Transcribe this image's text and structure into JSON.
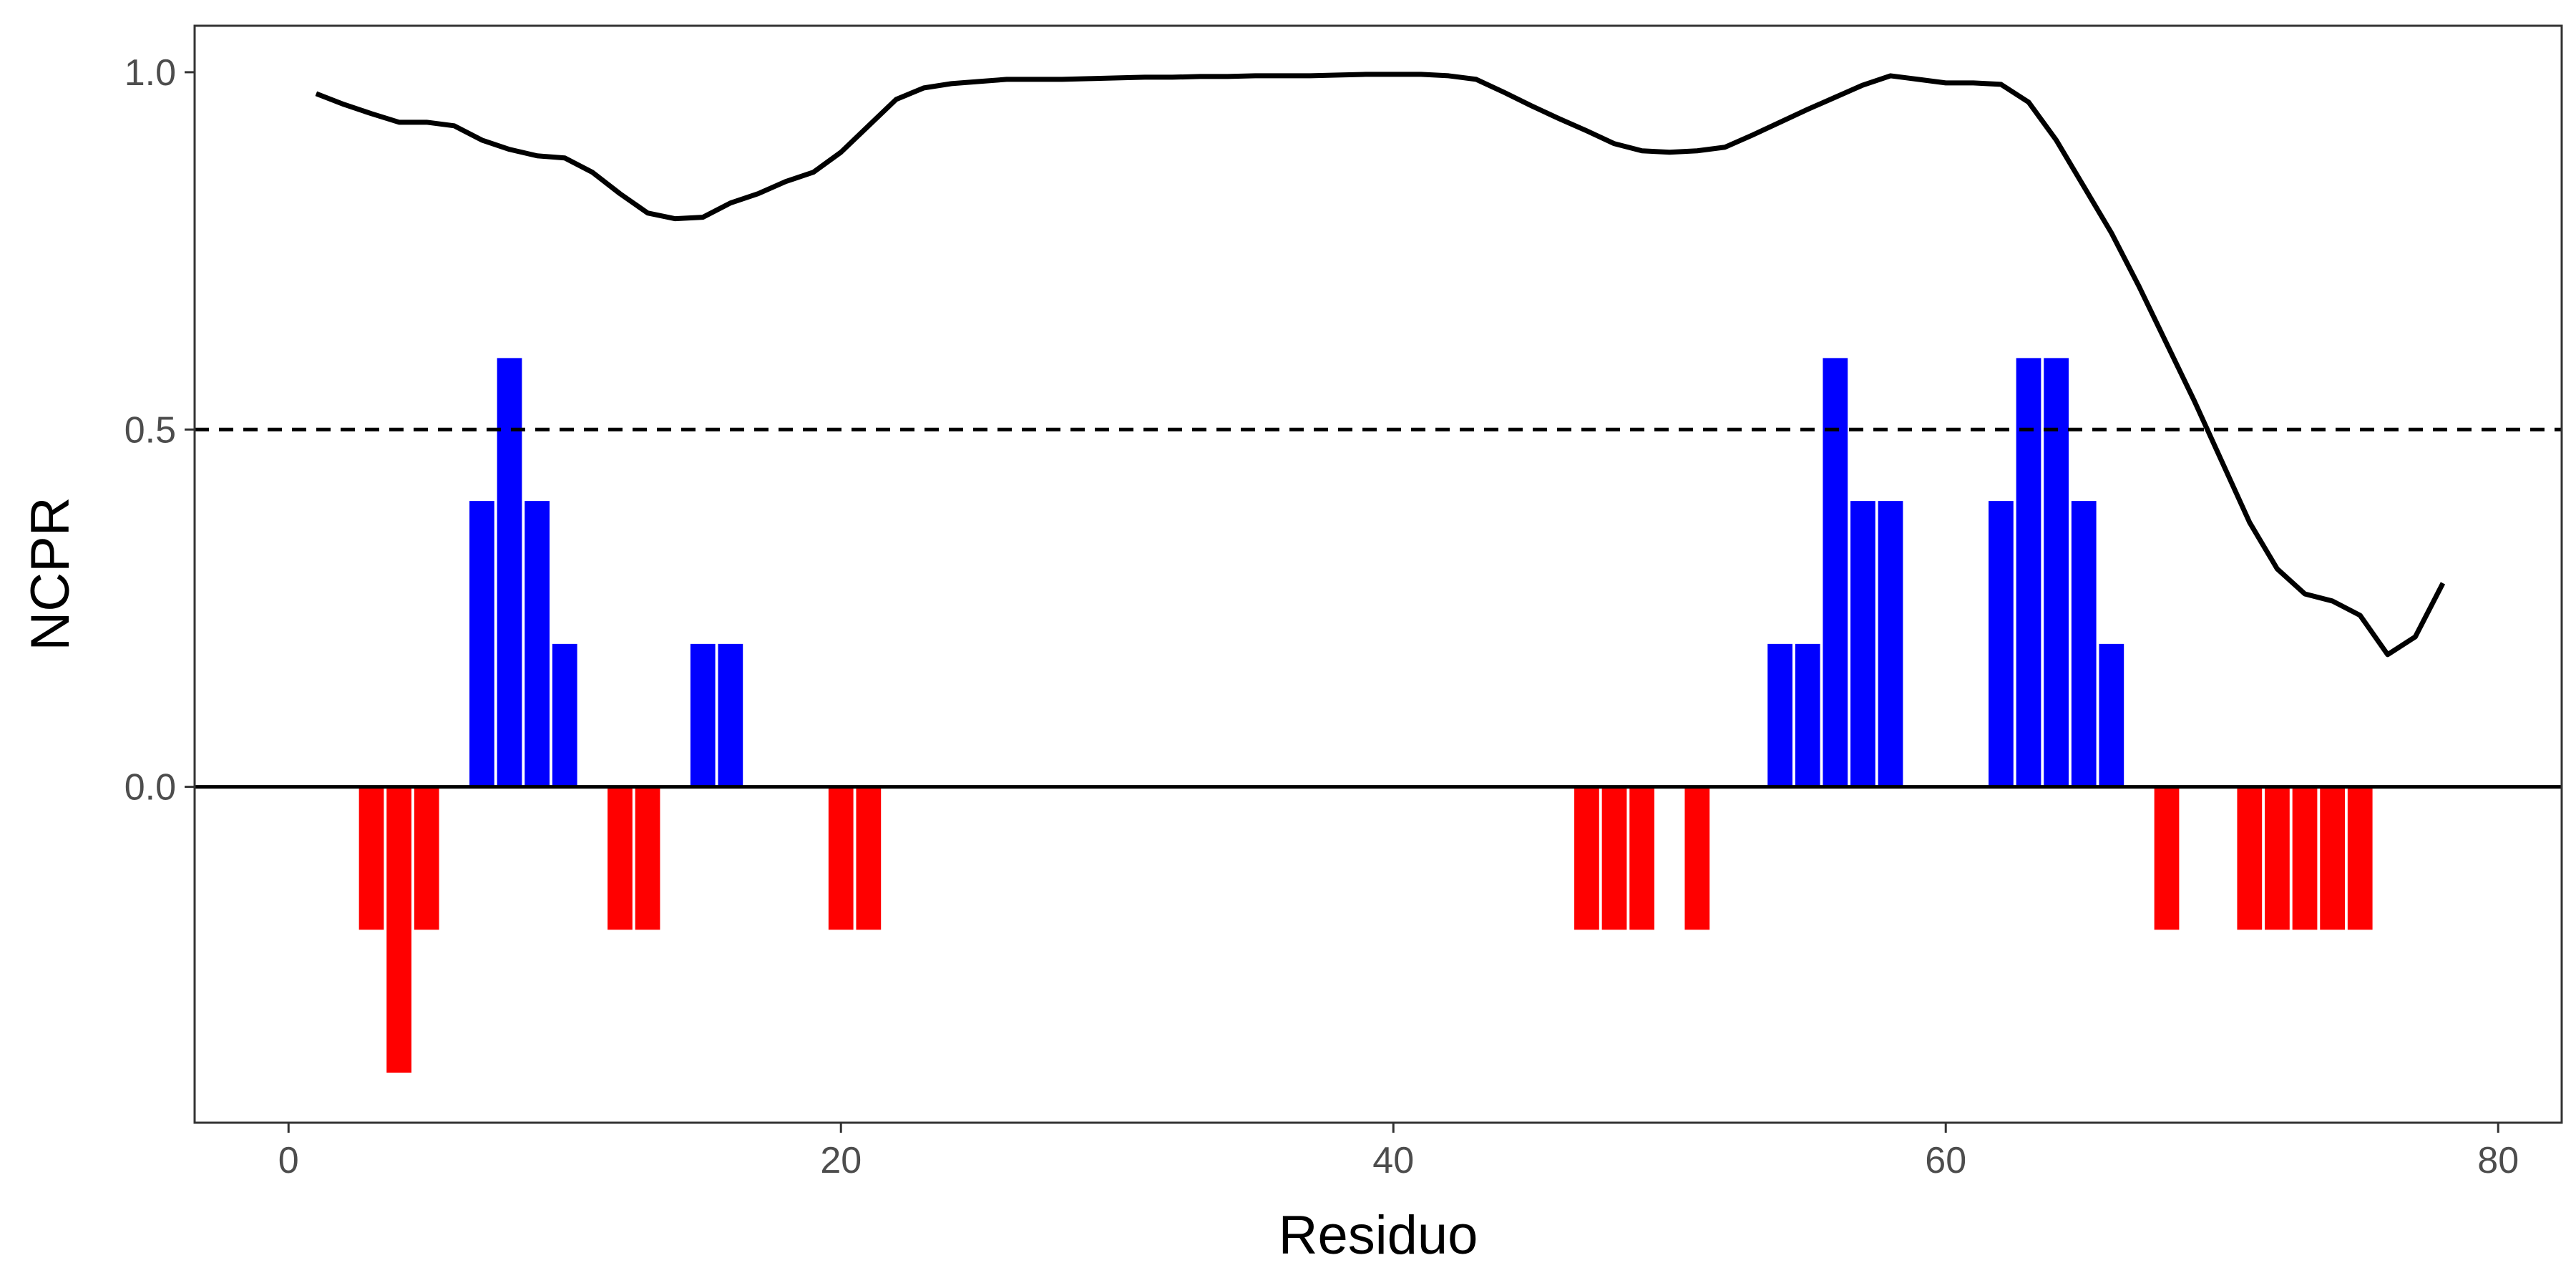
{
  "chart_data": {
    "type": "bar",
    "xlabel": "Residuo",
    "ylabel": "NCPR",
    "xlim": [
      -3.4,
      82.3
    ],
    "ylim": [
      -0.47,
      1.065
    ],
    "xticks": [
      0,
      20,
      40,
      60,
      80
    ],
    "yticks": [
      0.0,
      0.5,
      1.0
    ],
    "xtick_labels": [
      "0",
      "20",
      "40",
      "60",
      "80"
    ],
    "ytick_labels": [
      "0.0",
      "0.5",
      "1.0"
    ],
    "grid": false,
    "colors": {
      "positive": "#0000ff",
      "negative": "#ff0000",
      "line": "#000000",
      "reference": "#000000"
    },
    "bars": {
      "x": [
        3,
        4,
        5,
        7,
        8,
        9,
        10,
        12,
        13,
        15,
        16,
        20,
        21,
        47,
        48,
        49,
        51,
        54,
        55,
        56,
        57,
        58,
        62,
        63,
        64,
        65,
        66,
        68,
        71,
        72,
        73,
        74,
        75
      ],
      "values": [
        -0.2,
        -0.4,
        -0.2,
        0.4,
        0.6,
        0.4,
        0.2,
        -0.2,
        -0.2,
        0.2,
        0.2,
        -0.2,
        -0.2,
        -0.2,
        -0.2,
        -0.2,
        -0.2,
        0.2,
        0.2,
        0.6,
        0.4,
        0.4,
        0.4,
        0.6,
        0.6,
        0.4,
        0.2,
        -0.2,
        -0.2,
        -0.2,
        -0.2,
        -0.2,
        -0.2
      ]
    },
    "line": {
      "x": [
        1,
        2,
        3,
        4,
        5,
        6,
        7,
        8,
        9,
        10,
        11,
        12,
        13,
        14,
        15,
        16,
        17,
        18,
        19,
        20,
        21,
        22,
        23,
        24,
        25,
        26,
        27,
        28,
        29,
        30,
        31,
        32,
        33,
        34,
        35,
        36,
        37,
        38,
        39,
        40,
        41,
        42,
        43,
        44,
        45,
        46,
        47,
        48,
        49,
        50,
        51,
        52,
        53,
        54,
        55,
        56,
        57,
        58,
        59,
        60,
        61,
        62,
        63,
        64,
        65,
        66,
        67,
        68,
        69,
        70,
        71,
        72,
        73,
        74,
        75,
        76,
        77,
        78
      ],
      "values": [
        0.97,
        0.955,
        0.942,
        0.93,
        0.93,
        0.925,
        0.905,
        0.892,
        0.883,
        0.88,
        0.86,
        0.83,
        0.803,
        0.795,
        0.797,
        0.817,
        0.83,
        0.847,
        0.86,
        0.888,
        0.925,
        0.962,
        0.978,
        0.984,
        0.987,
        0.99,
        0.99,
        0.99,
        0.991,
        0.992,
        0.993,
        0.993,
        0.994,
        0.994,
        0.995,
        0.995,
        0.995,
        0.996,
        0.997,
        0.997,
        0.997,
        0.995,
        0.99,
        0.972,
        0.953,
        0.935,
        0.918,
        0.9,
        0.89,
        0.888,
        0.89,
        0.895,
        0.912,
        0.93,
        0.948,
        0.965,
        0.982,
        0.995,
        0.99,
        0.985,
        0.985,
        0.983,
        0.958,
        0.905,
        0.84,
        0.775,
        0.7,
        0.62,
        0.54,
        0.455,
        0.37,
        0.305,
        0.27,
        0.26,
        0.24,
        0.185,
        0.21,
        0.285
      ]
    },
    "reference_lines": [
      {
        "y": 0.5,
        "style": "dashed"
      },
      {
        "y": 0.0,
        "style": "solid"
      }
    ]
  }
}
